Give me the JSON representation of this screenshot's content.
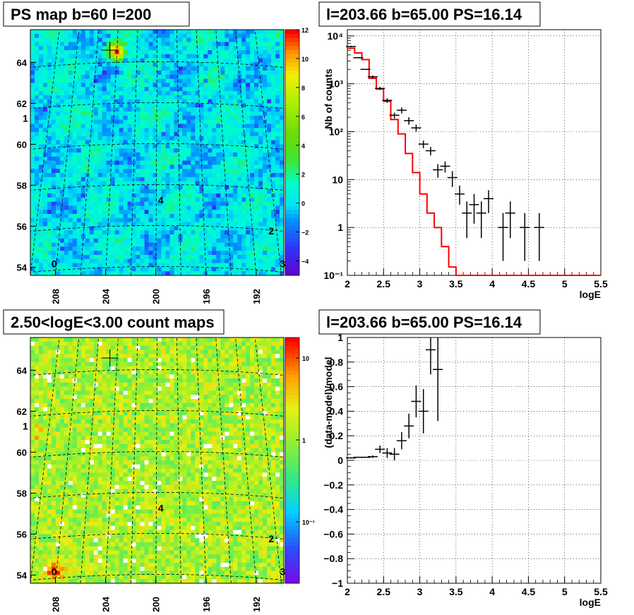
{
  "panels": {
    "tl": {
      "title": "PS map b=60 l=200"
    },
    "tr": {
      "title": "l=203.66 b=65.00 PS=16.14"
    },
    "bl": {
      "title": "2.50<logE<3.00 count maps"
    },
    "br": {
      "title": "l=203.66 b=65.00 PS=16.14"
    }
  },
  "maps": {
    "lat_ticks": [
      "54",
      "56",
      "58",
      "60",
      "62",
      "64"
    ],
    "lon_ticks": [
      "208",
      "204",
      "200",
      "196",
      "192"
    ],
    "sources": [
      {
        "label": "0"
      },
      {
        "label": "1"
      },
      {
        "label": "2"
      },
      {
        "label": "3"
      },
      {
        "label": "4"
      }
    ],
    "ps_scale": {
      "labels": [
        "12",
        "10",
        "8",
        "6",
        "4",
        "2",
        "0",
        "−2",
        "−4"
      ]
    },
    "count_scale": {
      "labels": [
        "10",
        "1",
        "10⁻¹"
      ]
    }
  },
  "chart_data": [
    {
      "type": "heatmap",
      "title": "PS map b=60 l=200",
      "xlabel": "",
      "ylabel": "",
      "x_ticks": [
        "208",
        "204",
        "200",
        "196",
        "192"
      ],
      "y_ticks": [
        "54",
        "56",
        "58",
        "60",
        "62",
        "64"
      ],
      "zlim": [
        -5,
        12
      ],
      "hotspot": {
        "lon": 203.3,
        "lat": 64.6,
        "value": 12
      }
    },
    {
      "type": "line",
      "title": "l=203.66 b=65.00 PS=16.14",
      "xlabel": "logE",
      "ylabel": "Nb of counts",
      "xlim": [
        2,
        5.5
      ],
      "ylim": [
        0.1,
        10000
      ],
      "yscale": "log",
      "grid": true,
      "x_ticks": [
        "2",
        "2.5",
        "3",
        "3.5",
        "4",
        "4.5",
        "5",
        "5.5"
      ],
      "y_ticks": [
        "10⁻¹",
        "1",
        "10",
        "10²",
        "10³",
        "10⁴"
      ],
      "series": [
        {
          "style": "step",
          "color": "#ff0000",
          "x": [
            2.05,
            2.15,
            2.25,
            2.35,
            2.45,
            2.55,
            2.65,
            2.75,
            2.85,
            2.95,
            3.05,
            3.15,
            3.25,
            3.35,
            3.45,
            3.55,
            3.65,
            3.75,
            3.85,
            3.95,
            4.05,
            5.45
          ],
          "y": [
            5500,
            4400,
            3200,
            1300,
            780,
            430,
            180,
            90,
            35,
            14,
            5,
            2,
            1,
            0.4,
            0.15,
            0.09,
            0.08,
            0.07,
            0.1,
            0.1,
            0.1,
            0.1
          ]
        },
        {
          "style": "errorbar",
          "color": "#000000",
          "x": [
            2.05,
            2.15,
            2.25,
            2.35,
            2.45,
            2.55,
            2.65,
            2.75,
            2.85,
            2.95,
            3.05,
            3.15,
            3.25,
            3.35,
            3.45,
            3.55,
            3.65,
            3.75,
            3.85,
            3.95,
            4.15,
            4.25,
            4.45,
            4.65
          ],
          "y": [
            6000,
            3500,
            2000,
            1400,
            800,
            450,
            220,
            280,
            170,
            120,
            55,
            40,
            16,
            19,
            11,
            5,
            2,
            3,
            2,
            4,
            1,
            2,
            1,
            1
          ],
          "ylo": [
            5800,
            3400,
            1950,
            1300,
            740,
            400,
            190,
            240,
            140,
            100,
            45,
            32,
            11,
            14,
            7,
            3,
            0.6,
            1.2,
            0.6,
            2,
            0.2,
            0.6,
            0.2,
            0.2
          ],
          "yhi": [
            6200,
            3600,
            2050,
            1500,
            860,
            500,
            250,
            320,
            200,
            140,
            65,
            48,
            21,
            24,
            15,
            7.5,
            3.5,
            5,
            3.5,
            6,
            2,
            3.5,
            2,
            2
          ]
        }
      ]
    },
    {
      "type": "heatmap",
      "title": "2.50<logE<3.00 count maps",
      "xlabel": "",
      "ylabel": "",
      "x_ticks": [
        "208",
        "204",
        "200",
        "196",
        "192"
      ],
      "y_ticks": [
        "54",
        "56",
        "58",
        "60",
        "62",
        "64"
      ],
      "zscale": "log",
      "hotspot": {
        "lon": 208.3,
        "lat": 54.3
      }
    },
    {
      "type": "scatter",
      "title": "l=203.66 b=65.00 PS=16.14",
      "xlabel": "logE",
      "ylabel": "(data-model)/model",
      "xlim": [
        2,
        5.5
      ],
      "ylim": [
        -1,
        1
      ],
      "grid": true,
      "x_ticks": [
        "2",
        "2.5",
        "3",
        "3.5",
        "4",
        "4.5",
        "5",
        "5.5"
      ],
      "y_ticks": [
        "−1",
        "−0.8",
        "−0.6",
        "−0.4",
        "−0.2",
        "0",
        "0.2",
        "0.4",
        "0.6",
        "0.8",
        "1"
      ],
      "series": [
        {
          "style": "errorbar",
          "color": "#000000",
          "x": [
            2.05,
            2.15,
            2.25,
            2.35,
            2.45,
            2.55,
            2.65,
            2.75,
            2.85,
            2.95,
            3.05,
            3.15,
            3.25
          ],
          "y": [
            0.02,
            0.025,
            0.025,
            0.03,
            0.09,
            0.06,
            0.05,
            0.16,
            0.28,
            0.48,
            0.4,
            0.9,
            0.74
          ],
          "ylo": [
            0.015,
            0.02,
            0.02,
            0.02,
            0.06,
            0.02,
            0.0,
            0.09,
            0.18,
            0.35,
            0.22,
            0.7,
            0.32
          ],
          "yhi": [
            0.025,
            0.03,
            0.03,
            0.04,
            0.12,
            0.1,
            0.1,
            0.23,
            0.38,
            0.61,
            0.58,
            1.0,
            1.0
          ]
        }
      ]
    }
  ]
}
